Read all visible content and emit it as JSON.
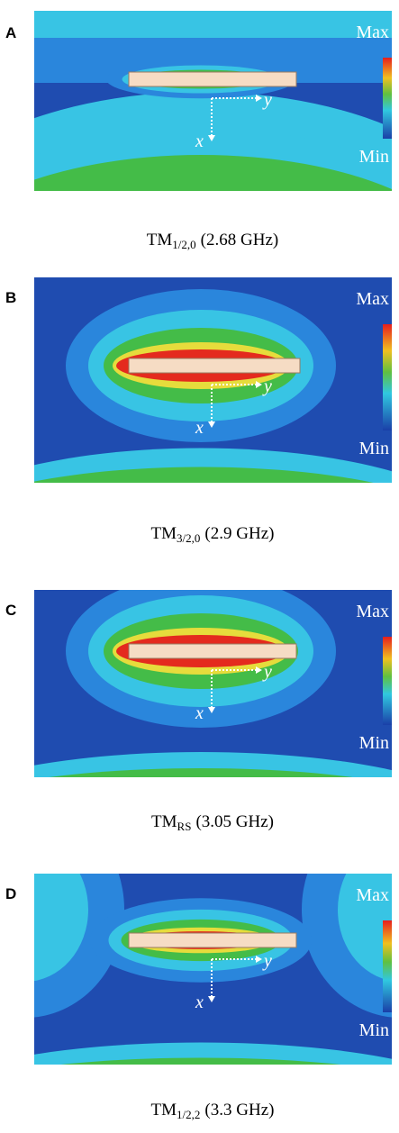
{
  "panels": [
    {
      "label": "A",
      "max": "Max",
      "min": "Min",
      "axis_x": "x",
      "axis_y": "y",
      "caption": {
        "base": "TM",
        "sub": "1/2,0",
        "freq": "(2.68 GHz)"
      }
    },
    {
      "label": "B",
      "max": "Max",
      "min": "Min",
      "axis_x": "x",
      "axis_y": "y",
      "caption": {
        "base": "TM",
        "sub": "3/2,0",
        "freq": "(2.9 GHz)"
      }
    },
    {
      "label": "C",
      "max": "Max",
      "min": "Min",
      "axis_x": "x",
      "axis_y": "y",
      "caption": {
        "base": "TM",
        "sub": "RS",
        "freq": "(3.05 GHz)"
      }
    },
    {
      "label": "D",
      "max": "Max",
      "min": "Min",
      "axis_x": "x",
      "axis_y": "y",
      "caption": {
        "base": "TM",
        "sub": "1/2,2",
        "freq": "(3.3 GHz)"
      }
    }
  ]
}
